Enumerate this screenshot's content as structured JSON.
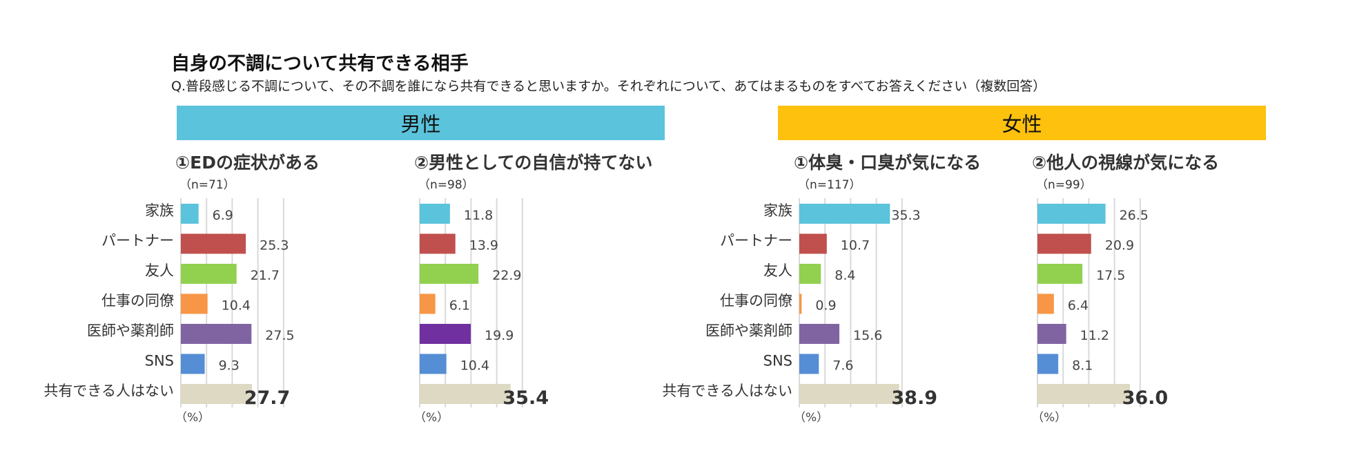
{
  "header": {
    "title": "自身の不調について共有できる相手",
    "question": "Q.普段感じる不調について、その不調を誰になら共有できると思いますか。それぞれについて、あてはまるものをすべてお答えください（複数回答）"
  },
  "banners": {
    "male": "男性",
    "female": "女性"
  },
  "colors": {
    "banner_male": "#5bc3dc",
    "banner_female": "#fdc10e",
    "categories": [
      "#5bc3dc",
      "#c0504d",
      "#92d050",
      "#f79646",
      "#8064a2",
      "#558ed5",
      "#ddd9c3"
    ],
    "highlight_purple": "#7030a0",
    "grid": "#d9d9d9"
  },
  "chart_data": [
    {
      "type": "bar",
      "orientation": "horizontal",
      "group": "男性",
      "title": "①EDの症状がある",
      "sample": "（n=71）",
      "unit_label": "（%）",
      "categories": [
        "家族",
        "パートナー",
        "友人",
        "仕事の同僚",
        "医師や薬剤師",
        "SNS",
        "共有できる人はない"
      ],
      "values": [
        6.9,
        25.3,
        21.7,
        10.4,
        27.5,
        9.3,
        27.7
      ],
      "labels": [
        "6.9",
        "25.3",
        "21.7",
        "10.4",
        "27.5",
        "9.3",
        "27.7"
      ],
      "xlim": [
        0,
        40
      ],
      "grid_step": 10,
      "show_categories": true
    },
    {
      "type": "bar",
      "orientation": "horizontal",
      "group": "男性",
      "title": "②男性としての自信が持てない",
      "sample": "（n=98）",
      "unit_label": "（%）",
      "categories": [
        "家族",
        "パートナー",
        "友人",
        "仕事の同僚",
        "医師や薬剤師",
        "SNS",
        "共有できる人はない"
      ],
      "values": [
        11.8,
        13.9,
        22.9,
        6.1,
        19.9,
        10.4,
        35.4
      ],
      "labels": [
        "11.8",
        "13.9",
        "22.9",
        "6.1",
        "19.9",
        "10.4",
        "35.4"
      ],
      "xlim": [
        0,
        40
      ],
      "grid_step": 10,
      "show_categories": false,
      "purple_highlight_index": 4
    },
    {
      "type": "bar",
      "orientation": "horizontal",
      "group": "女性",
      "title": "①体臭・口臭が気になる",
      "sample": "（n=117）",
      "unit_label": "（%）",
      "categories": [
        "家族",
        "パートナー",
        "友人",
        "仕事の同僚",
        "医師や薬剤師",
        "SNS",
        "共有できる人はない"
      ],
      "values": [
        35.3,
        10.7,
        8.4,
        0.9,
        15.6,
        7.6,
        38.9
      ],
      "labels": [
        "35.3",
        "10.7",
        "8.4",
        "0.9",
        "15.6",
        "7.6",
        "38.9"
      ],
      "xlim": [
        0,
        40
      ],
      "grid_step": 10,
      "show_categories": true
    },
    {
      "type": "bar",
      "orientation": "horizontal",
      "group": "女性",
      "title": "②他人の視線が気になる",
      "sample": "（n=99）",
      "unit_label": "（%）",
      "categories": [
        "家族",
        "パートナー",
        "友人",
        "仕事の同僚",
        "医師や薬剤師",
        "SNS",
        "共有できる人はない"
      ],
      "values": [
        26.5,
        20.9,
        17.5,
        6.4,
        11.2,
        8.1,
        36.0
      ],
      "labels": [
        "26.5",
        "20.9",
        "17.5",
        "6.4",
        "11.2",
        "8.1",
        "36.0"
      ],
      "xlim": [
        0,
        40
      ],
      "grid_step": 10,
      "show_categories": false
    }
  ]
}
